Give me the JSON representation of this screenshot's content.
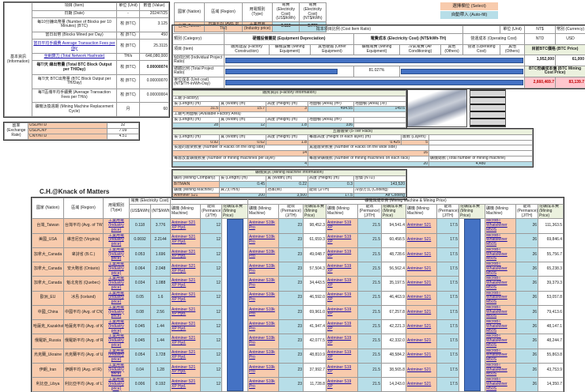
{
  "info": {
    "section_label": "基本資訊 (Information)",
    "headers": {
      "item": "項目 (Item)",
      "unit": "單位 (Unit)",
      "value": "數值 (Value)"
    },
    "rows": [
      {
        "item": "日期 (Date)",
        "unit": "-",
        "value": "2024/7/25"
      },
      {
        "item": "每10分鐘出幣量 (Number of Blocks per 10 Minutes) (BTC)",
        "unit": "枚 (BTC)",
        "value": "3.125"
      },
      {
        "item": "當日出幣 (Blocks Mined per Day)",
        "unit": "枚 (BTC)",
        "value": "450"
      },
      {
        "item": "當日平均手續費 Average Transaction Fees per day",
        "unit": "枚 (BTC)",
        "value": "25.3115",
        "link": true
      },
      {
        "item": "全網算力 (Total Network Hashrate)",
        "unit": "TH/s",
        "value": "646,080,000",
        "link": true
      },
      {
        "item": "每T/天 總出幣量 (Total BTC Block Output per TH/Day)",
        "unit": "枚 (BTC)",
        "value": "0.00000074",
        "bold": true
      },
      {
        "item": "每T/天 BTC出幣量 (BTC Block Output per TH/Day)",
        "unit": "枚 (BTC)",
        "value": "0.00000070"
      },
      {
        "item": "每T區塊平均手續費 (Average Transaction Fees per TH/s)",
        "unit": "枚 (BTC)",
        "value": "0.00000004"
      },
      {
        "item": "礦機汰換週期 (Mining Machine Replacement Cycle)",
        "unit": "月",
        "value": "60"
      }
    ]
  },
  "exchange": {
    "label": "匯率 (Exchange Rate)",
    "rows": [
      {
        "pair": "USD/NTD",
        "value": "32"
      },
      {
        "pair": "USD/CNY",
        "value": "7.09"
      },
      {
        "pair": "CNY/NTD",
        "value": "4.51"
      }
    ]
  },
  "selection": {
    "headers": [
      "國家 (Nation)",
      "區域 (Region)",
      "用電類別 (Type)",
      "電費 (Electricity Cost) (US$/kWh)",
      "電費 (Electricity Cost) (NT$/kWh)"
    ],
    "values": [
      "台灣_Taiwan",
      "台灣平均 (Avg. of TW)",
      "工業用電 (Industry price)",
      "0.118",
      "3.776"
    ]
  },
  "legend": {
    "select": "選擇欄位 (Select)",
    "autofill": "自動帶入 (Auto-fill)",
    "select_color": "#f8cbad",
    "autofill_color": "#b7dee8"
  },
  "cost_ratio": {
    "title": "成本項目比例 (Cost Item Ratio)",
    "unit_label": "單位 (Unit)",
    "unit_value": "NT$",
    "currency_label": "幣別 (Currency)",
    "ntd": "NTD",
    "usd": "USD",
    "category_label": "類別 (Category)",
    "groups": [
      "硬體設備攤提 (Equipment Depreciation)",
      "電費成本 (Electricity Cost) (NT$/kWh-TH)",
      "營運成本 (Operating Cost)"
    ],
    "item_label": "項目 (Item)",
    "items": [
      "廠房建設 (Factory Construction)",
      "礦機設備 (Mining Equipment)",
      "其他硬體 (Other Equipment)",
      "礦機電費 (Mining Equipment)",
      "冷氣電費 (Air Conditioning)",
      "其他 (Others)",
      "營運 (Operating Cost)",
      "其他 (Others)"
    ],
    "rows": [
      "個別比例 (Individual Project Ratio)",
      "總體比例 (Total Project Ratio)",
      "單位成本 (Unit cost) (NT$/TH-in/Wh-Day)"
    ],
    "total_ratio_mining_electricity": "81.027%",
    "btc_price_label": "目前BTC價格 (BTC Price)",
    "btc_price_ntd": "1,952,000",
    "btc_price_usd": "61,000",
    "mining_cost_label": "BTC挖礦成本價 (BTC Mining Cost Price)",
    "mining_cost_ntd": "2,660,469.7",
    "mining_cost_usd": "83,139.7",
    "bar_color": "#4472c4"
  },
  "factory": {
    "title": "廠房資訊 (Factory Information)",
    "factory_label": "工廠 (Factory)",
    "labels": [
      "長 (Length) (m)",
      "寬 (Width) (m)",
      "高度 (Height) (m)",
      "地面積 (Area) (m²)",
      "地面積 (Area) (坪)"
    ],
    "values": [
      "31.5",
      "15.7",
      "3",
      "494.55",
      "149.6"
    ],
    "available_label": "工廠可用面積 (Available Factory Area)",
    "available_labels": [
      "長 (Length) (m)",
      "寬 (Width) (m)",
      "高度 (Height) (m)",
      "地面積 (Area) (m²)"
    ],
    "available_values": [
      "28",
      "12",
      "1.8",
      "336"
    ]
  },
  "rack": {
    "title": "五層層架 (5-Tier Rack)",
    "labels": [
      "長 (Length) (m)",
      "寬 (Width) (m)",
      "高度 (Height) (m)",
      "每層高度 (Height of each layer) (m)",
      "層數 (Layers)"
    ],
    "values": [
      "0.92",
      "0.62",
      "1.8",
      "0.425",
      "5"
    ],
    "long_side_label": "長邊的層架數量 (Number of Racks on the long side)",
    "long_side": "14",
    "wide_side_label": "寬邊層架數量 (Number of Racks on the wide side)",
    "wide_side": "16",
    "per_layer_label": "每層放置礦機數量 (Number of mining machines per layer)",
    "per_layer": "4",
    "per_rack_label": "每層架礦機數 (Number of mining machines on each rack)",
    "per_rack": "20",
    "total_label": "礦機總數 (Total number of mining machine)",
    "total": "4,480"
  },
  "machine": {
    "title": "礦機資訊 (Mining Machine Information)",
    "row1_labels": [
      "礦商 (Mining Company)",
      "長 (Length) (m)",
      "寬 (Width) (m)",
      "高度 (Height) (m)",
      "台價 (NTD)"
    ],
    "row1_values": [
      "BITMAIN",
      "0.45",
      "0.22",
      "0.3",
      "143,520"
    ],
    "row2_labels": [
      "礦機 (Mining Machine)",
      "算力(TH/s)",
      "功率(W)",
      "能效 (J/TH)",
      "冷卻方式 (Cooling)"
    ],
    "row2_values": [
      "Antminer S21",
      "200",
      "3,500",
      "17.5",
      "Air Cooling"
    ]
  },
  "brand": "C.H.@Knack of Matters",
  "comparison": {
    "group_title": "礦機與成本費 (Mining Machine & Mining Price)",
    "headers": {
      "nation": "國家 (Nation)",
      "region": "區域 (Region)",
      "type": "用電類別 (Type)",
      "elec": "電費 (Electricity Cost)",
      "usd": "(US$/kWh)",
      "ntd": "(NT$/kWh)",
      "machine": "礦機 (Mining Machine)",
      "perf": "能效 (Permance) (J/TH)",
      "price": "挖礦成本費 (Mining Price)"
    },
    "machines": [
      {
        "name": "Antminer S21 XP Hyd.",
        "perf": "12",
        "bar": true
      },
      {
        "name": "Antminer S19k Pro",
        "perf": "23"
      },
      {
        "name": "Antminer S19 XP",
        "perf": "21.5"
      },
      {
        "name": "Antminer S21",
        "perf": "17.5",
        "bar": true
      },
      {
        "name": "MicroBT WhatsMiner M50S",
        "perf": "26"
      }
    ],
    "type_value": "工業用電 (Industry price)",
    "rows": [
      {
        "nation": "台灣_Taiwan",
        "region": "台灣平均 (Avg. of TW)",
        "usd": "0.118",
        "ntd": "3.776",
        "prices": [
          "98,452.3",
          "94,541.4",
          "111,363.5"
        ]
      },
      {
        "nation": "美國_USA",
        "region": "維吉尼亞 (Virginia)",
        "usd": "0.0692",
        "ntd": "2.2144",
        "prices": [
          "61,659.3",
          "60,458.5",
          "69,846.4"
        ]
      },
      {
        "nation": "加拿大_Canada",
        "region": "卑詩省 (B.C.)",
        "usd": "0.053",
        "ntd": "1.696",
        "prices": [
          "49,048.7",
          "48,728.6",
          "55,756.7"
        ]
      },
      {
        "nation": "加拿大_Canada",
        "region": "安大略省 (Ontario)",
        "usd": "0.064",
        "ntd": "2.048",
        "prices": [
          "57,504.3",
          "56,562.4",
          "65,238.3"
        ]
      },
      {
        "nation": "加拿大_Canada",
        "region": "魁北克省 (Quebec)",
        "usd": "0.034",
        "ntd": "1.088",
        "prices": [
          "34,443.5",
          "35,197.5",
          "39,379.3"
        ]
      },
      {
        "nation": "歐洲_EU",
        "region": "冰島 (Iceland)",
        "usd": "0.05",
        "ntd": "1.6",
        "prices": [
          "46,592.0",
          "46,463.9",
          "53,057.8"
        ]
      },
      {
        "nation": "中國_China",
        "region": "中國平均 (Avg. of CN)",
        "usd": "0.08",
        "ntd": "2.56",
        "prices": [
          "69,961.0",
          "67,257.8",
          "79,413.6"
        ]
      },
      {
        "nation": "哈薩克_Kazakhstan",
        "region": "哈薩克平均 (Avg. of KZ)",
        "usd": "0.045",
        "ntd": "1.44",
        "prices": [
          "41,947.4",
          "42,221.3",
          "48,147.1"
        ]
      },
      {
        "nation": "俄羅斯_Russia",
        "region": "俄羅斯平均 (Avg. of RU)",
        "usd": "0.045",
        "ntd": "1.44",
        "prices": [
          "42,077.5",
          "42,332.0",
          "48,244.7"
        ]
      },
      {
        "nation": "烏克蘭_Ukraine",
        "region": "烏克蘭平均 (Avg. of UA)",
        "usd": "0.054",
        "ntd": "1.728",
        "prices": [
          "48,810.9",
          "48,584.2",
          "55,863.8"
        ]
      },
      {
        "nation": "伊朗_Iran",
        "region": "伊朗平均 (Avg. of IR)",
        "usd": "0.04",
        "ntd": "1.28",
        "prices": [
          "37,992.7",
          "38,565.8",
          "43,753.9"
        ]
      },
      {
        "nation": "利比亞_Libya",
        "region": "利比亞平均 (Avg. of LY)",
        "usd": "0.006",
        "ntd": "0.192",
        "prices": [
          "11,728.8",
          "14,243.0",
          "14,350.7"
        ]
      }
    ]
  }
}
